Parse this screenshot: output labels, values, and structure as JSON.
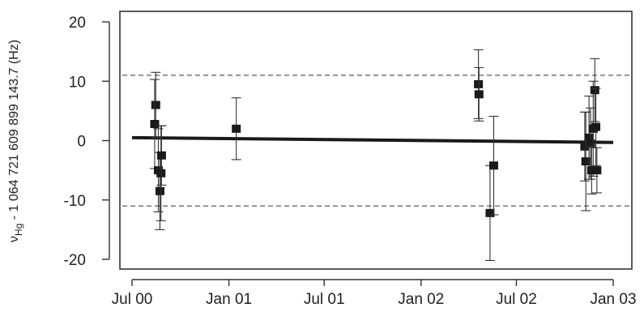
{
  "chart_data": {
    "type": "scatter",
    "title": "",
    "xlabel": "",
    "ylabel": {
      "symbol": "ν",
      "subscript": "Hg",
      "rest": " - 1 064 721 609 899 143.7 (Hz)"
    },
    "ylim": [
      -22,
      22
    ],
    "xlim": [
      "2000-06-27",
      "2003-01-08"
    ],
    "grid": false,
    "legend": "none",
    "y_ticks": [
      {
        "value": 20,
        "label": "20"
      },
      {
        "value": 10,
        "label": "10"
      },
      {
        "value": 0,
        "label": "0"
      },
      {
        "value": -10,
        "label": "-10"
      },
      {
        "value": -20,
        "label": "-20"
      }
    ],
    "x_ticks": [
      {
        "date": "2000-07-01",
        "label": "Jul 00"
      },
      {
        "date": "2001-01-01",
        "label": "Jan 01"
      },
      {
        "date": "2001-07-01",
        "label": "Jul 01"
      },
      {
        "date": "2002-01-01",
        "label": "Jan 02"
      },
      {
        "date": "2002-07-01",
        "label": "Jul 02"
      },
      {
        "date": "2003-01-01",
        "label": "Jan 03"
      }
    ],
    "dashed_lines": [
      11,
      -11
    ],
    "fit_line": {
      "start": {
        "date": "2000-07-01",
        "y": 0.5
      },
      "end": {
        "date": "2003-01-01",
        "y": -0.3
      }
    },
    "points": [
      {
        "date": "2000-08-15",
        "y": 6.0,
        "err": 5.5
      },
      {
        "date": "2000-08-13",
        "y": 2.8,
        "err": 7.5
      },
      {
        "date": "2000-08-20",
        "y": -5.0,
        "err": 7.0
      },
      {
        "date": "2000-08-23",
        "y": -8.5,
        "err": 6.5
      },
      {
        "date": "2000-08-25",
        "y": -5.5,
        "err": 8.0
      },
      {
        "date": "2000-08-26",
        "y": -2.5,
        "err": 5.0
      },
      {
        "date": "2001-01-15",
        "y": 2.0,
        "err": 5.2
      },
      {
        "date": "2002-04-20",
        "y": 9.5,
        "err": 5.8
      },
      {
        "date": "2002-04-21",
        "y": 7.8,
        "err": 4.5
      },
      {
        "date": "2002-05-12",
        "y": -12.2,
        "err": 8.0
      },
      {
        "date": "2002-05-19",
        "y": -4.2,
        "err": 8.3
      },
      {
        "date": "2002-11-08",
        "y": -1.0,
        "err": 5.8
      },
      {
        "date": "2002-11-10",
        "y": -3.5,
        "err": 8.3
      },
      {
        "date": "2002-11-16",
        "y": 0.5,
        "err": 7.0
      },
      {
        "date": "2002-11-19",
        "y": -0.5,
        "err": 6.0
      },
      {
        "date": "2002-11-21",
        "y": -5.0,
        "err": 4.0
      },
      {
        "date": "2002-11-24",
        "y": 2.0,
        "err": 8.0
      },
      {
        "date": "2002-11-27",
        "y": 8.5,
        "err": 5.3
      },
      {
        "date": "2002-11-29",
        "y": 2.3,
        "err": 6.5
      },
      {
        "date": "2002-12-01",
        "y": -5.0,
        "err": 3.8
      }
    ]
  }
}
